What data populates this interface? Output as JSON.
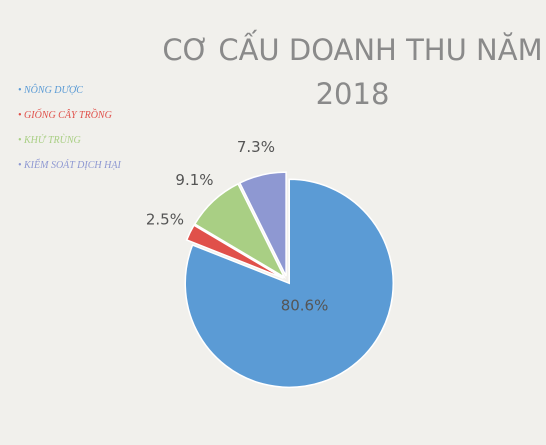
{
  "chart_data": {
    "type": "pie",
    "title": "CƠ CẤU DOANH THU NĂM 2018",
    "categories": [
      "NÔNG DƯỢC",
      "GIỐNG CÂY TRỒNG",
      "KHỬ TRÙNG",
      "KIỂM SOÁT DỊCH HẠI"
    ],
    "values": [
      80.6,
      2.5,
      9.1,
      7.3
    ],
    "value_labels": [
      "80.6%",
      "2.5%",
      "9.1%",
      "7.3%"
    ],
    "colors": [
      "#5b9bd5",
      "#e0504a",
      "#a9cf84",
      "#8e98d2"
    ],
    "legend": "left"
  }
}
